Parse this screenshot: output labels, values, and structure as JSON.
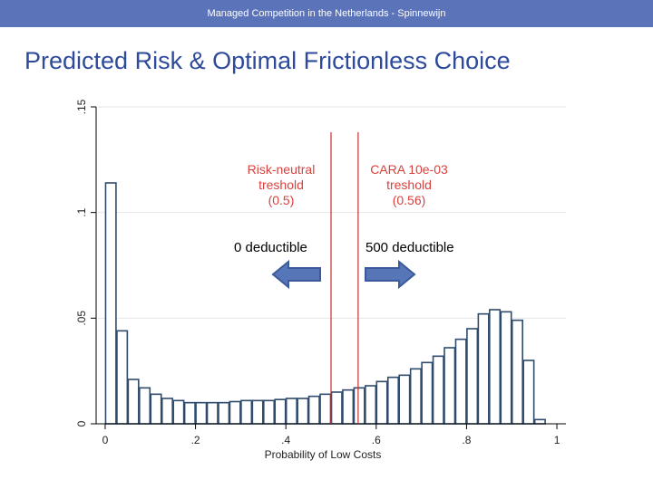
{
  "header": {
    "text": "Managed Competition in the Netherlands - Spinnewijn"
  },
  "slide": {
    "title": "Predicted Risk & Optimal Frictionless Choice"
  },
  "colors": {
    "header_bg": "#5b73b8",
    "title": "#2e4b9b",
    "bar_stroke": "#2f4b6c",
    "threshold_line": "#c9302c",
    "threshold_text": "#d9413e",
    "arrow_fill": "#5676b8",
    "arrow_stroke": "#3a5a9a"
  },
  "annotations": {
    "risk_neutral": {
      "line1": "Risk-neutral",
      "line2": "treshold",
      "line3": "(0.5)"
    },
    "cara": {
      "line1": "CARA 10e-03",
      "line2": "treshold",
      "line3": "(0.56)"
    },
    "left_arrow_label": "0 deductible",
    "right_arrow_label": "500 deductible",
    "left_arrow_icon": "left-arrow-icon",
    "right_arrow_icon": "right-arrow-icon"
  },
  "chart_data": {
    "type": "bar",
    "title": "",
    "xlabel": "Probability of Low Costs",
    "ylabel": "",
    "xlim": [
      -0.02,
      1.02
    ],
    "ylim": [
      0,
      0.15
    ],
    "bin_width": 0.025,
    "x": [
      0.0,
      0.025,
      0.05,
      0.075,
      0.1,
      0.125,
      0.15,
      0.175,
      0.2,
      0.225,
      0.25,
      0.275,
      0.3,
      0.325,
      0.35,
      0.375,
      0.4,
      0.425,
      0.45,
      0.475,
      0.5,
      0.525,
      0.55,
      0.575,
      0.6,
      0.625,
      0.65,
      0.675,
      0.7,
      0.725,
      0.75,
      0.775,
      0.8,
      0.825,
      0.85,
      0.875,
      0.9,
      0.925,
      0.95
    ],
    "values": [
      0.114,
      0.044,
      0.021,
      0.017,
      0.014,
      0.012,
      0.011,
      0.01,
      0.01,
      0.01,
      0.01,
      0.0105,
      0.011,
      0.011,
      0.011,
      0.0115,
      0.012,
      0.012,
      0.013,
      0.014,
      0.015,
      0.016,
      0.017,
      0.018,
      0.02,
      0.022,
      0.023,
      0.026,
      0.029,
      0.032,
      0.036,
      0.04,
      0.045,
      0.052,
      0.054,
      0.053,
      0.049,
      0.03,
      0.002
    ],
    "x_ticks": [
      0,
      0.2,
      0.4,
      0.6,
      0.8,
      1
    ],
    "x_tick_labels": [
      "0",
      ".2",
      ".4",
      ".6",
      ".8",
      "1"
    ],
    "y_ticks": [
      0,
      0.05,
      0.1,
      0.15
    ],
    "y_tick_labels": [
      "0",
      ".05",
      ".1",
      ".15"
    ],
    "grid": "horizontal",
    "thresholds": [
      0.5,
      0.56
    ]
  }
}
